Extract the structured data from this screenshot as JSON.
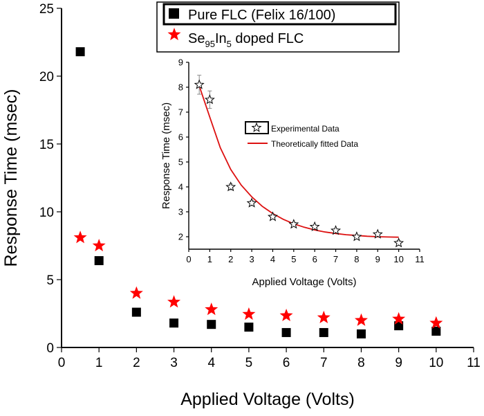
{
  "chart_data": [
    {
      "type": "scatter",
      "xlabel": "Applied Voltage (Volts)",
      "ylabel": "Response Time (msec)",
      "xlim": [
        0,
        11
      ],
      "ylim": [
        0,
        25
      ],
      "xticks": [
        0,
        1,
        2,
        3,
        4,
        5,
        6,
        7,
        8,
        9,
        10,
        11
      ],
      "yticks": [
        0,
        5,
        10,
        15,
        20,
        25
      ],
      "xtick_labels": [
        "0",
        "1",
        "2",
        "3",
        "4",
        "5",
        "6",
        "7",
        "8",
        "9",
        "10",
        "11"
      ],
      "ytick_labels": [
        "0",
        "5",
        "10",
        "15",
        "20",
        "25"
      ],
      "legend_placement": "top-center",
      "series": [
        {
          "name": "Pure FLC (Felix 16/100)",
          "marker": "square",
          "color": "#000000",
          "x": [
            0.5,
            1,
            2,
            3,
            4,
            5,
            6,
            7,
            8,
            9,
            10
          ],
          "y": [
            21.8,
            6.4,
            2.6,
            1.8,
            1.7,
            1.5,
            1.1,
            1.1,
            1.0,
            1.6,
            1.2
          ]
        },
        {
          "name_parts": [
            "Se",
            "95",
            "In",
            "5",
            " doped FLC"
          ],
          "marker": "star",
          "color": "#ff0000",
          "x": [
            0.5,
            1,
            2,
            3,
            4,
            5,
            6,
            7,
            8,
            9,
            10
          ],
          "y": [
            8.1,
            7.5,
            4.0,
            3.35,
            2.8,
            2.45,
            2.35,
            2.2,
            2.0,
            2.1,
            1.8
          ]
        }
      ]
    },
    {
      "type": "scatter",
      "xlabel": "Applied Voltage (Volts)",
      "ylabel": "Response Time (msec)",
      "xlim": [
        0,
        11
      ],
      "ylim": [
        1.5,
        9
      ],
      "xticks": [
        0,
        1,
        2,
        3,
        4,
        5,
        6,
        7,
        8,
        9,
        10,
        11
      ],
      "yticks": [
        2,
        3,
        4,
        5,
        6,
        7,
        8,
        9
      ],
      "xtick_labels": [
        "0",
        "1",
        "2",
        "3",
        "4",
        "5",
        "6",
        "7",
        "8",
        "9",
        "10",
        "11"
      ],
      "ytick_labels": [
        "2",
        "3",
        "4",
        "5",
        "6",
        "7",
        "8",
        "9"
      ],
      "legend_placement": "center-right",
      "series": [
        {
          "name": "Experimental Data",
          "marker": "open-star",
          "color": "#000000",
          "x": [
            0.5,
            1,
            2,
            3,
            4,
            5,
            6,
            7,
            8,
            9,
            10
          ],
          "y": [
            8.1,
            7.5,
            4.0,
            3.35,
            2.8,
            2.5,
            2.4,
            2.25,
            2.0,
            2.1,
            1.75
          ],
          "error": [
            0.38,
            0.35,
            0.12,
            0.1,
            0.08,
            0.07,
            0.07,
            0.06,
            0.06,
            0.06,
            0.1
          ]
        },
        {
          "name": "Theoretically fitted Data",
          "type": "line",
          "color": "#dd1111",
          "x": [
            0.5,
            1,
            1.5,
            2,
            2.5,
            3,
            3.5,
            4,
            4.5,
            5,
            5.5,
            6,
            6.5,
            7,
            7.5,
            8,
            8.5,
            9,
            9.5,
            10
          ],
          "y": [
            8.05,
            6.8,
            5.58,
            4.7,
            4.07,
            3.6,
            3.22,
            2.93,
            2.7,
            2.52,
            2.38,
            2.27,
            2.19,
            2.13,
            2.08,
            2.05,
            2.02,
            2.0,
            1.99,
            1.98
          ]
        }
      ]
    }
  ]
}
